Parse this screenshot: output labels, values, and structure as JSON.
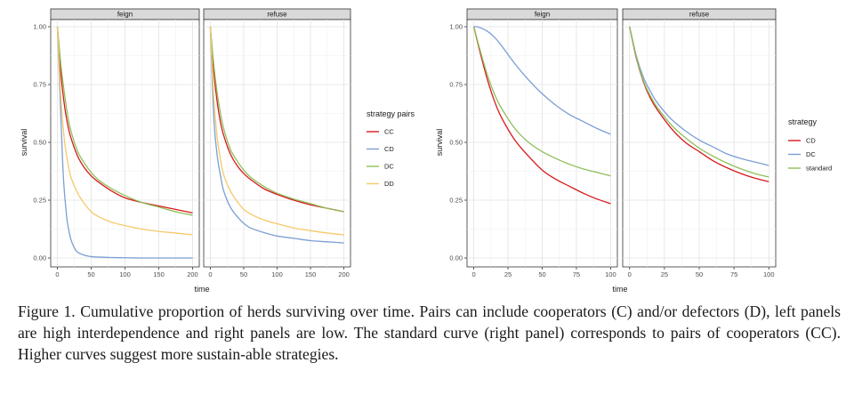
{
  "chart_data": [
    {
      "type": "line",
      "facets": [
        "feign",
        "refuse"
      ],
      "xlabel": "time",
      "ylabel": "survival",
      "xlim": [
        0,
        200
      ],
      "ylim": [
        0,
        1
      ],
      "xticks": [
        "0",
        "50",
        "100",
        "150",
        "200"
      ],
      "yticks": [
        "0.00",
        "0.25",
        "0.50",
        "0.75",
        "1.00"
      ],
      "grid": true,
      "legend_title": "strategy pairs",
      "legend_position": "right",
      "series": [
        {
          "name": "CC",
          "color": "#d7191c",
          "facet": "feign",
          "x": [
            0,
            5,
            10,
            15,
            20,
            30,
            40,
            50,
            60,
            80,
            100,
            125,
            150,
            175,
            200
          ],
          "y": [
            1.0,
            0.8,
            0.67,
            0.58,
            0.52,
            0.44,
            0.39,
            0.355,
            0.33,
            0.29,
            0.26,
            0.24,
            0.225,
            0.21,
            0.195
          ]
        },
        {
          "name": "CD",
          "color": "#7b9fd4",
          "facet": "feign",
          "x": [
            0,
            5,
            8,
            10,
            13,
            15,
            20,
            25,
            30,
            40,
            50,
            60,
            80,
            100,
            125,
            150,
            175,
            200
          ],
          "y": [
            1.0,
            0.62,
            0.4,
            0.3,
            0.2,
            0.15,
            0.08,
            0.045,
            0.025,
            0.012,
            0.006,
            0.004,
            0.002,
            0.001,
            0.0,
            0.0,
            0.0,
            0.0
          ]
        },
        {
          "name": "DC",
          "color": "#8fbf5a",
          "facet": "feign",
          "x": [
            0,
            5,
            10,
            15,
            20,
            30,
            40,
            50,
            60,
            80,
            100,
            125,
            150,
            175,
            200
          ],
          "y": [
            1.0,
            0.84,
            0.72,
            0.62,
            0.55,
            0.46,
            0.41,
            0.37,
            0.34,
            0.3,
            0.27,
            0.24,
            0.22,
            0.2,
            0.185
          ]
        },
        {
          "name": "DD",
          "color": "#f5c96a",
          "facet": "feign",
          "x": [
            0,
            5,
            10,
            15,
            20,
            30,
            40,
            50,
            60,
            80,
            100,
            125,
            150,
            175,
            200
          ],
          "y": [
            1.0,
            0.7,
            0.52,
            0.42,
            0.35,
            0.28,
            0.235,
            0.2,
            0.18,
            0.155,
            0.14,
            0.125,
            0.115,
            0.108,
            0.1
          ]
        },
        {
          "name": "CC",
          "color": "#d7191c",
          "facet": "refuse",
          "x": [
            0,
            5,
            10,
            15,
            20,
            30,
            40,
            50,
            60,
            80,
            100,
            125,
            150,
            175,
            200
          ],
          "y": [
            1.0,
            0.81,
            0.68,
            0.59,
            0.53,
            0.45,
            0.4,
            0.365,
            0.34,
            0.3,
            0.275,
            0.25,
            0.23,
            0.215,
            0.2
          ]
        },
        {
          "name": "CD",
          "color": "#7b9fd4",
          "facet": "refuse",
          "x": [
            0,
            5,
            10,
            15,
            20,
            30,
            40,
            50,
            60,
            80,
            100,
            125,
            150,
            175,
            200
          ],
          "y": [
            1.0,
            0.62,
            0.45,
            0.36,
            0.29,
            0.22,
            0.18,
            0.15,
            0.13,
            0.11,
            0.095,
            0.085,
            0.075,
            0.07,
            0.065
          ]
        },
        {
          "name": "DC",
          "color": "#8fbf5a",
          "facet": "refuse",
          "x": [
            0,
            5,
            10,
            15,
            20,
            30,
            40,
            50,
            60,
            80,
            100,
            125,
            150,
            175,
            200
          ],
          "y": [
            1.0,
            0.84,
            0.72,
            0.63,
            0.56,
            0.47,
            0.42,
            0.38,
            0.35,
            0.31,
            0.28,
            0.255,
            0.235,
            0.215,
            0.2
          ]
        },
        {
          "name": "DD",
          "color": "#f5c96a",
          "facet": "refuse",
          "x": [
            0,
            5,
            10,
            15,
            20,
            30,
            40,
            50,
            60,
            80,
            100,
            125,
            150,
            175,
            200
          ],
          "y": [
            1.0,
            0.7,
            0.53,
            0.43,
            0.36,
            0.29,
            0.245,
            0.21,
            0.19,
            0.165,
            0.148,
            0.13,
            0.118,
            0.108,
            0.1
          ]
        }
      ]
    },
    {
      "type": "line",
      "facets": [
        "feign",
        "refuse"
      ],
      "xlabel": "time",
      "ylabel": "survival",
      "xlim": [
        0,
        100
      ],
      "ylim": [
        0,
        1
      ],
      "xticks": [
        "0",
        "25",
        "50",
        "75",
        "100"
      ],
      "yticks": [
        "0.00",
        "0.25",
        "0.50",
        "0.75",
        "1.00"
      ],
      "grid": true,
      "legend_title": "strategy",
      "legend_position": "right",
      "series": [
        {
          "name": "CD",
          "color": "#d7191c",
          "facet": "feign",
          "x": [
            0,
            5,
            10,
            15,
            20,
            30,
            40,
            50,
            60,
            70,
            80,
            90,
            100
          ],
          "y": [
            1.0,
            0.88,
            0.77,
            0.68,
            0.61,
            0.51,
            0.44,
            0.38,
            0.34,
            0.31,
            0.28,
            0.255,
            0.235
          ]
        },
        {
          "name": "DC",
          "color": "#7b9fd4",
          "facet": "feign",
          "x": [
            0,
            2,
            5,
            10,
            15,
            20,
            30,
            40,
            50,
            60,
            70,
            80,
            90,
            100
          ],
          "y": [
            1.0,
            1.0,
            0.995,
            0.98,
            0.955,
            0.92,
            0.84,
            0.77,
            0.71,
            0.66,
            0.62,
            0.59,
            0.56,
            0.535
          ]
        },
        {
          "name": "standard",
          "color": "#8fbf5a",
          "facet": "feign",
          "x": [
            0,
            5,
            10,
            15,
            20,
            30,
            40,
            50,
            60,
            70,
            80,
            90,
            100
          ],
          "y": [
            1.0,
            0.89,
            0.79,
            0.71,
            0.65,
            0.56,
            0.5,
            0.46,
            0.43,
            0.405,
            0.385,
            0.37,
            0.355
          ]
        },
        {
          "name": "CD",
          "color": "#d7191c",
          "facet": "refuse",
          "x": [
            0,
            5,
            10,
            15,
            20,
            30,
            40,
            50,
            60,
            70,
            80,
            90,
            100
          ],
          "y": [
            1.0,
            0.86,
            0.76,
            0.69,
            0.64,
            0.56,
            0.5,
            0.46,
            0.42,
            0.39,
            0.365,
            0.345,
            0.33
          ]
        },
        {
          "name": "DC",
          "color": "#7b9fd4",
          "facet": "refuse",
          "x": [
            0,
            5,
            10,
            15,
            20,
            30,
            40,
            50,
            60,
            70,
            80,
            90,
            100
          ],
          "y": [
            1.0,
            0.87,
            0.78,
            0.72,
            0.67,
            0.6,
            0.55,
            0.51,
            0.48,
            0.45,
            0.43,
            0.415,
            0.4
          ]
        },
        {
          "name": "standard",
          "color": "#8fbf5a",
          "facet": "refuse",
          "x": [
            0,
            5,
            10,
            15,
            20,
            30,
            40,
            50,
            60,
            70,
            80,
            90,
            100
          ],
          "y": [
            1.0,
            0.865,
            0.765,
            0.7,
            0.65,
            0.575,
            0.52,
            0.475,
            0.44,
            0.41,
            0.385,
            0.365,
            0.35
          ]
        }
      ]
    }
  ],
  "caption": "Figure 1.  Cumulative proportion of herds surviving over time.  Pairs can include cooperators (C) and/or defectors (D), left panels are high interdependence and right panels are low.  The standard curve (right panel) corresponds to pairs of cooperators (CC). Higher curves suggest more sustain-able strategies."
}
